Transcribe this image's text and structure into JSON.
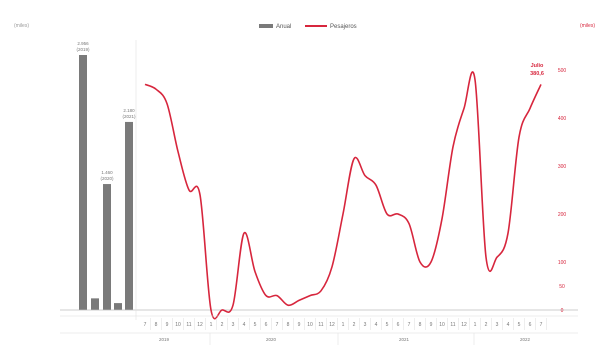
{
  "chart_data": {
    "type": "bar+line",
    "legend": {
      "placement": "top-center",
      "entries": [
        {
          "label": "Anual",
          "color": "#7a7a7a"
        },
        {
          "label": "Pesajeros",
          "color": "#d7263d"
        }
      ]
    },
    "left_axis": {
      "unit": "(miles)"
    },
    "right_axis": {
      "unit": "(miles)",
      "ticks": [
        "500",
        "400",
        "300",
        "200",
        "100",
        "50",
        "0"
      ],
      "tick_values": [
        500,
        400,
        300,
        200,
        100,
        50,
        0
      ],
      "color": "#d7263d"
    },
    "annual_bars": {
      "color": "#7a7a7a",
      "bars": [
        {
          "value": 2956,
          "label": "2.956",
          "sublabel": "(2019)"
        },
        {
          "value": 135,
          "label": "",
          "sublabel": ""
        },
        {
          "value": 1460,
          "label": "1.460",
          "sublabel": "(2020)"
        },
        {
          "value": 80,
          "label": "",
          "sublabel": ""
        },
        {
          "value": 2180,
          "label": "2.180",
          "sublabel": "(2021)"
        }
      ]
    },
    "monthly_series": {
      "name": "Pesajeros",
      "color": "#d7263d",
      "months": [
        "7",
        "8",
        "9",
        "10",
        "11",
        "12",
        "1",
        "2",
        "3",
        "4",
        "5",
        "6",
        "7",
        "8",
        "9",
        "10",
        "11",
        "12",
        "1",
        "2",
        "3",
        "4",
        "5",
        "6",
        "7",
        "8",
        "9",
        "10",
        "11",
        "12",
        "1",
        "2",
        "3",
        "4",
        "5",
        "6",
        "7"
      ],
      "values": [
        470,
        460,
        430,
        330,
        250,
        240,
        0,
        0,
        10,
        160,
        80,
        30,
        30,
        10,
        20,
        30,
        40,
        90,
        200,
        315,
        280,
        260,
        200,
        200,
        180,
        100,
        100,
        190,
        340,
        420,
        480,
        110,
        110,
        160,
        360,
        420,
        470
      ]
    },
    "year_labels": [
      "2019",
      "2020",
      "2021",
      "2022"
    ],
    "annotation": {
      "label": "Julio",
      "value": "380,6"
    }
  }
}
